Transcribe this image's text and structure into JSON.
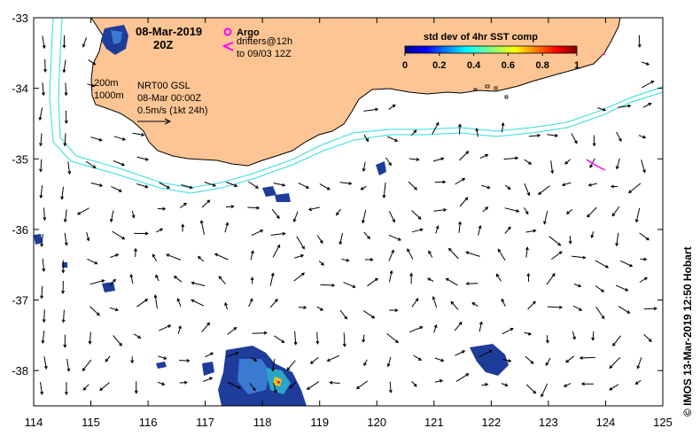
{
  "header": {
    "date": "08-Mar-2019",
    "hour": "20Z"
  },
  "argo": {
    "label": "Argo",
    "drifters_label": "drifters@12h",
    "drifters_range": "to 09/03 12Z",
    "marker_color": "#ff00ff"
  },
  "colorbar": {
    "title": "std dev of 4hr SST comp",
    "ticks": [
      "0",
      "0.2",
      "0.4",
      "0.6",
      "0.8",
      "1"
    ]
  },
  "contours": {
    "label_200": "200m",
    "label_1000": "1000m",
    "color": "#33dddd"
  },
  "currents": {
    "source_label": "NRT00 GSL",
    "time_label": "08-Mar 00:00Z",
    "scale_label": "0.5m/s (1kt 24h)"
  },
  "credit": {
    "text": "©  IMOS 13-Mar-2019 12:50 Hobart"
  },
  "axes": {
    "x_ticks": [
      "114",
      "115",
      "116",
      "117",
      "118",
      "119",
      "120",
      "121",
      "122",
      "123",
      "124",
      "125"
    ],
    "y_ticks": [
      "-33",
      "-34",
      "-35",
      "-36",
      "-37",
      "-38"
    ],
    "lon_range": [
      114,
      125
    ],
    "lat_range": [
      -38.5,
      -33
    ]
  },
  "colors": {
    "land": "#fdc593",
    "water": "#ffffff"
  }
}
